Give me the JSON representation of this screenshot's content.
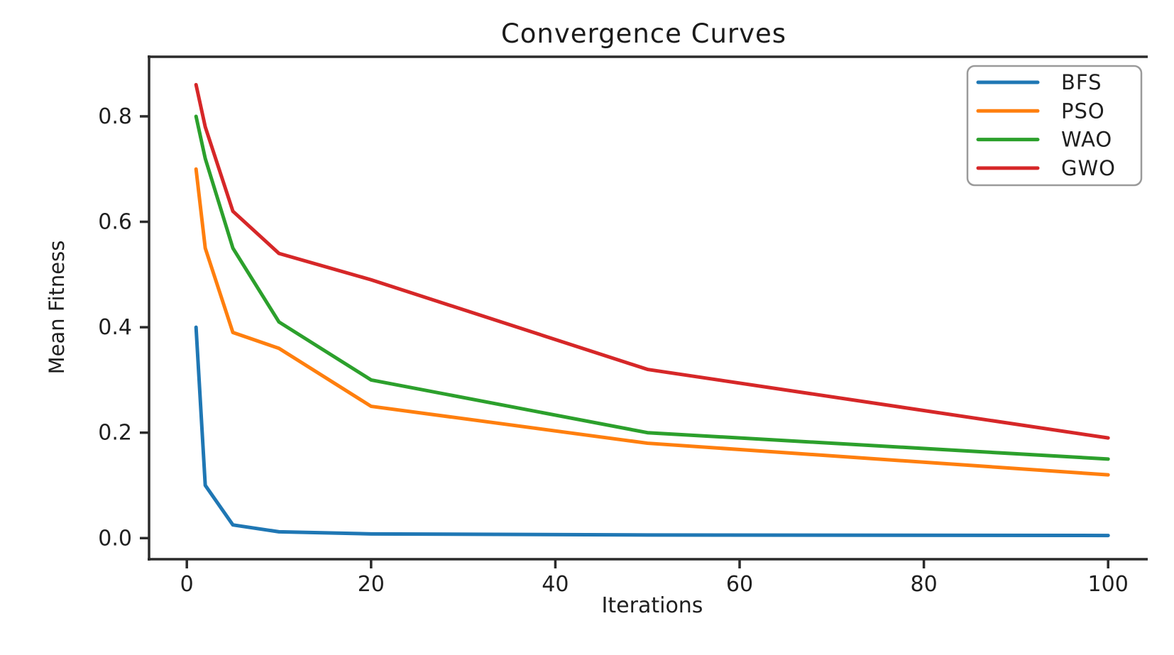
{
  "figure": {
    "background": "#ffffff",
    "text_color": "#1f1f1f",
    "axis_color": "#2b2b2b",
    "legend_border_color": "#9a9a9a"
  },
  "chart_data": {
    "type": "line",
    "title": "Convergence Curves",
    "xlabel": "Iterations",
    "ylabel": "Mean Fitness",
    "x": [
      1,
      2,
      5,
      10,
      20,
      50,
      100
    ],
    "series": [
      {
        "name": "BFS",
        "color": "#1f77b4",
        "values": [
          0.4,
          0.1,
          0.025,
          0.012,
          0.008,
          0.006,
          0.005
        ]
      },
      {
        "name": "PSO",
        "color": "#ff7f0e",
        "values": [
          0.7,
          0.55,
          0.39,
          0.36,
          0.25,
          0.18,
          0.12
        ]
      },
      {
        "name": "WAO",
        "color": "#2ca02c",
        "values": [
          0.8,
          0.72,
          0.55,
          0.41,
          0.3,
          0.2,
          0.15
        ]
      },
      {
        "name": "GWO",
        "color": "#d62728",
        "values": [
          0.86,
          0.78,
          0.62,
          0.54,
          0.49,
          0.32,
          0.19
        ]
      }
    ],
    "xticks": {
      "values": [
        0,
        20,
        40,
        60,
        80,
        100
      ],
      "labels": [
        "0",
        "20",
        "40",
        "60",
        "80",
        "100"
      ]
    },
    "yticks": {
      "values": [
        0,
        0.2,
        0.4,
        0.6,
        0.8
      ],
      "labels": [
        "0.0",
        "0.2",
        "0.4",
        "0.6",
        "0.8"
      ]
    },
    "xlim": [
      -4.1,
      104.3
    ],
    "ylim": [
      -0.04,
      0.913
    ],
    "grid": false,
    "legend": {
      "position": "upper right",
      "entries": [
        "BFS",
        "PSO",
        "WAO",
        "GWO"
      ]
    }
  }
}
